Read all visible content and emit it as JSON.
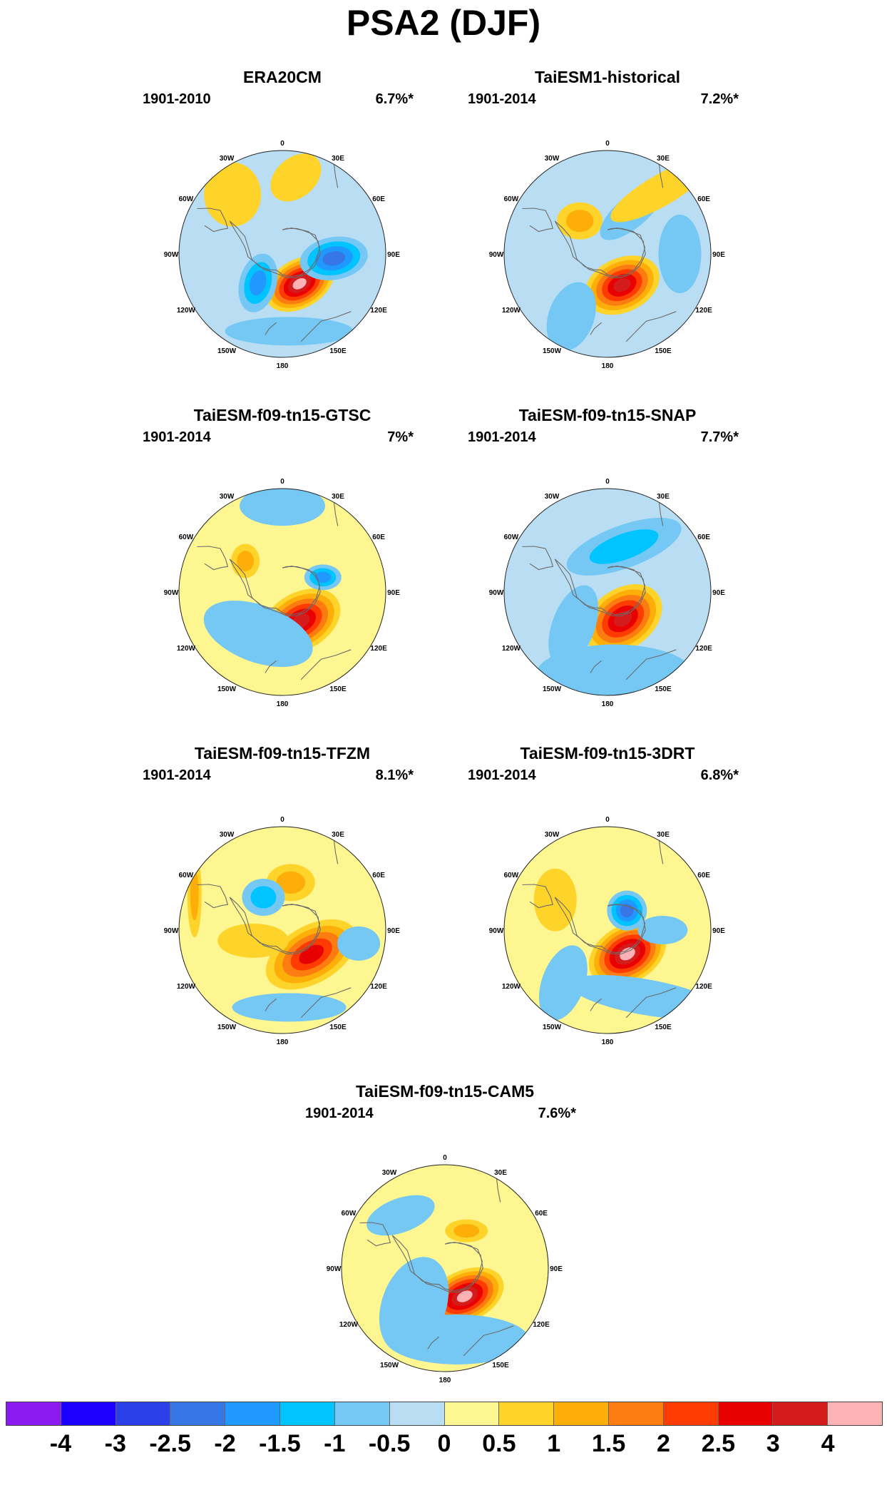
{
  "title": "PSA2 (DJF)",
  "lon_labels": [
    "0",
    "30E",
    "60E",
    "90E",
    "120E",
    "150E",
    "180",
    "150W",
    "120W",
    "90W",
    "60W",
    "30W"
  ],
  "colors": {
    "ocean_pos_weak": "#fdf691",
    "ocean_neg_weak": "#b9def3",
    "coast": "#6b6b6b"
  },
  "panels": [
    {
      "name": "ERA20CM",
      "period": "1901-2010",
      "variance": "6.7%*",
      "blobs": [
        {
          "lon": 150,
          "colat": 20,
          "rx": 52,
          "ry": 34,
          "rot": -30,
          "levels": [
            1,
            2,
            3,
            4,
            5,
            6,
            7
          ]
        },
        {
          "lon": 95,
          "colat": 30,
          "rx": 48,
          "ry": 30,
          "rot": -10,
          "levels": [
            -1,
            -2,
            -3,
            -4
          ]
        },
        {
          "lon": -140,
          "colat": 22,
          "rx": 26,
          "ry": 42,
          "rot": 15,
          "levels": [
            -1,
            -2,
            -3
          ]
        },
        {
          "lon": -40,
          "colat": 45,
          "rx": 40,
          "ry": 45,
          "rot": 0,
          "levels": [
            1
          ]
        },
        {
          "lon": 10,
          "colat": 45,
          "rx": 40,
          "ry": 28,
          "rot": -40,
          "levels": [
            1
          ]
        },
        {
          "lon": 175,
          "colat": 45,
          "rx": 90,
          "ry": 20,
          "rot": 0,
          "levels": [
            -1
          ]
        }
      ]
    },
    {
      "name": "TaiESM1-historical",
      "period": "1901-2014",
      "variance": "7.2%*",
      "blobs": [
        {
          "lon": 155,
          "colat": 20,
          "rx": 55,
          "ry": 38,
          "rot": -25,
          "levels": [
            1,
            2,
            3,
            4,
            5,
            6
          ]
        },
        {
          "lon": 90,
          "colat": 42,
          "rx": 30,
          "ry": 55,
          "rot": 0,
          "levels": [
            -1
          ]
        },
        {
          "lon": -150,
          "colat": 42,
          "rx": 32,
          "ry": 50,
          "rot": 20,
          "levels": [
            -1
          ]
        },
        {
          "lon": -40,
          "colat": 25,
          "rx": 32,
          "ry": 26,
          "rot": 0,
          "levels": [
            1,
            2
          ]
        },
        {
          "lon": 30,
          "colat": 28,
          "rx": 55,
          "ry": 22,
          "rot": -40,
          "levels": [
            -1
          ]
        },
        {
          "lon": 40,
          "colat": 48,
          "rx": 80,
          "ry": 22,
          "rot": -30,
          "levels": [
            1
          ]
        }
      ]
    },
    {
      "name": "TaiESM-f09-tn15-GTSC",
      "period": "1901-2014",
      "variance": "7%*",
      "blobs": [
        {
          "lon": 148,
          "colat": 20,
          "rx": 60,
          "ry": 40,
          "rot": -30,
          "levels": [
            1,
            2,
            3,
            4,
            5,
            6
          ]
        },
        {
          "lon": 70,
          "colat": 25,
          "rx": 26,
          "ry": 18,
          "rot": 0,
          "levels": [
            -1,
            -2,
            -3
          ]
        },
        {
          "lon": -150,
          "colat": 28,
          "rx": 80,
          "ry": 40,
          "rot": 20,
          "levels": [
            -1
          ]
        },
        {
          "lon": -50,
          "colat": 28,
          "rx": 20,
          "ry": 24,
          "rot": 0,
          "levels": [
            1,
            2
          ]
        },
        {
          "lon": 0,
          "colat": 50,
          "rx": 60,
          "ry": 28,
          "rot": 0,
          "levels": [
            -1
          ]
        }
      ]
    },
    {
      "name": "TaiESM-f09-tn15-SNAP",
      "period": "1901-2014",
      "variance": "7.7%*",
      "blobs": [
        {
          "lon": 150,
          "colat": 18,
          "rx": 60,
          "ry": 42,
          "rot": -35,
          "levels": [
            1,
            2,
            3,
            4,
            5,
            6
          ]
        },
        {
          "lon": 20,
          "colat": 28,
          "rx": 85,
          "ry": 30,
          "rot": -20,
          "levels": [
            -1,
            -2
          ]
        },
        {
          "lon": -135,
          "colat": 28,
          "rx": 30,
          "ry": 60,
          "rot": 20,
          "levels": [
            -1
          ]
        },
        {
          "lon": 175,
          "colat": 48,
          "rx": 110,
          "ry": 42,
          "rot": 0,
          "levels": [
            -1
          ]
        }
      ]
    },
    {
      "name": "TaiESM-f09-tn15-TFZM",
      "period": "1901-2014",
      "variance": "8.1%*",
      "blobs": [
        {
          "lon": 130,
          "colat": 22,
          "rx": 70,
          "ry": 40,
          "rot": -30,
          "levels": [
            1,
            2,
            3,
            4,
            5
          ]
        },
        {
          "lon": 10,
          "colat": 28,
          "rx": 34,
          "ry": 26,
          "rot": 0,
          "levels": [
            1,
            2
          ]
        },
        {
          "lon": -30,
          "colat": 22,
          "rx": 30,
          "ry": 26,
          "rot": 0,
          "levels": [
            -1,
            -2
          ]
        },
        {
          "lon": -110,
          "colat": 18,
          "rx": 50,
          "ry": 24,
          "rot": 0,
          "levels": [
            1
          ]
        },
        {
          "lon": 100,
          "colat": 45,
          "rx": 30,
          "ry": 24,
          "rot": 0,
          "levels": [
            -1
          ]
        },
        {
          "lon": 175,
          "colat": 45,
          "rx": 80,
          "ry": 20,
          "rot": 0,
          "levels": [
            -1
          ]
        },
        {
          "lon": -68,
          "colat": 55,
          "rx": 10,
          "ry": 60,
          "rot": 0,
          "levels": [
            1,
            2
          ]
        }
      ]
    },
    {
      "name": "TaiESM-f09-tn15-3DRT",
      "period": "1901-2014",
      "variance": "6.8%*",
      "blobs": [
        {
          "lon": 140,
          "colat": 18,
          "rx": 58,
          "ry": 40,
          "rot": -30,
          "levels": [
            1,
            2,
            3,
            4,
            5,
            6,
            7
          ]
        },
        {
          "lon": 45,
          "colat": 16,
          "rx": 28,
          "ry": 28,
          "rot": 0,
          "levels": [
            -1,
            -2,
            -3,
            -4
          ]
        },
        {
          "lon": -60,
          "colat": 35,
          "rx": 30,
          "ry": 44,
          "rot": 0,
          "levels": [
            1
          ]
        },
        {
          "lon": -140,
          "colat": 40,
          "rx": 30,
          "ry": 55,
          "rot": 20,
          "levels": [
            -1
          ]
        },
        {
          "lon": 150,
          "colat": 45,
          "rx": 110,
          "ry": 25,
          "rot": 10,
          "levels": [
            -1
          ]
        },
        {
          "lon": 90,
          "colat": 32,
          "rx": 35,
          "ry": 20,
          "rot": 0,
          "levels": [
            -1
          ]
        }
      ]
    },
    {
      "name": "TaiESM-f09-tn15-CAM5",
      "period": "1901-2014",
      "variance": "7.6%*",
      "blobs": [
        {
          "lon": 145,
          "colat": 20,
          "rx": 58,
          "ry": 36,
          "rot": -25,
          "levels": [
            1,
            2,
            3,
            4,
            5,
            6,
            7
          ]
        },
        {
          "lon": 30,
          "colat": 25,
          "rx": 30,
          "ry": 16,
          "rot": 0,
          "levels": [
            1,
            2
          ]
        },
        {
          "lon": -40,
          "colat": 40,
          "rx": 50,
          "ry": 24,
          "rot": -20,
          "levels": [
            -1
          ]
        },
        {
          "lon": -140,
          "colat": 28,
          "rx": 45,
          "ry": 70,
          "rot": 20,
          "levels": [
            -1
          ]
        },
        {
          "lon": 170,
          "colat": 42,
          "rx": 100,
          "ry": 35,
          "rot": 0,
          "levels": [
            -1
          ]
        }
      ]
    }
  ],
  "colorbar": {
    "colors": [
      "#8a1af0",
      "#1c00ff",
      "#2b40e8",
      "#3676e5",
      "#1f98ff",
      "#00c4ff",
      "#74c8f3",
      "#b9def3",
      "#fdf691",
      "#fed42b",
      "#fdae08",
      "#fd7c12",
      "#fe3b00",
      "#e90000",
      "#d41c1c",
      "#fdb3b6"
    ],
    "ticks": [
      "-4",
      "-3",
      "-2.5",
      "-2",
      "-1.5",
      "-1",
      "-0.5",
      "0",
      "0.5",
      "1",
      "1.5",
      "2",
      "2.5",
      "3",
      "4"
    ]
  }
}
